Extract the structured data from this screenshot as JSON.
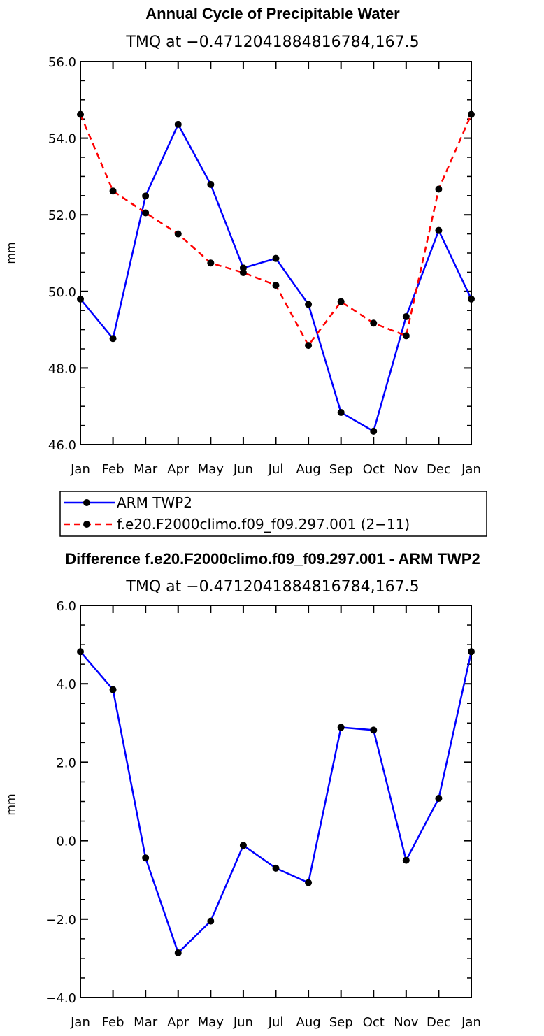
{
  "chart_data": [
    {
      "type": "line",
      "title": "Annual Cycle of Precipitable Water",
      "subtitle": "TMQ at −0.4712041884816784,167.5",
      "xlabel": "",
      "ylabel": "mm",
      "categories": [
        "Jan",
        "Feb",
        "Mar",
        "Apr",
        "May",
        "Jun",
        "Jul",
        "Aug",
        "Sep",
        "Oct",
        "Nov",
        "Dec",
        "Jan"
      ],
      "ylim": [
        46.0,
        56.0
      ],
      "yticks": [
        "46.0",
        "48.0",
        "50.0",
        "52.0",
        "54.0",
        "56.0"
      ],
      "grid": false,
      "series": [
        {
          "name": "ARM TWP2",
          "color": "#0000ff",
          "dash": "solid",
          "values": [
            49.8,
            48.77,
            52.49,
            54.36,
            52.79,
            50.61,
            50.86,
            49.66,
            46.84,
            46.35,
            49.34,
            51.59,
            49.8
          ]
        },
        {
          "name": "f.e20.F2000climo.f09_f09.297.001 (2−11)",
          "color": "#ff0000",
          "dash": "dashed",
          "values": [
            54.62,
            52.62,
            52.05,
            51.5,
            50.74,
            50.49,
            50.16,
            48.59,
            49.73,
            49.17,
            48.84,
            52.67,
            54.62
          ]
        }
      ],
      "legend": {
        "position": "below-left",
        "entries": [
          "ARM TWP2",
          "f.e20.F2000climo.f09_f09.297.001 (2−11)"
        ]
      }
    },
    {
      "type": "line",
      "title": "Difference f.e20.F2000climo.f09_f09.297.001 - ARM TWP2",
      "subtitle": "TMQ at −0.4712041884816784,167.5",
      "xlabel": "",
      "ylabel": "mm",
      "categories": [
        "Jan",
        "Feb",
        "Mar",
        "Apr",
        "May",
        "Jun",
        "Jul",
        "Aug",
        "Sep",
        "Oct",
        "Nov",
        "Dec",
        "Jan"
      ],
      "ylim": [
        -4.0,
        6.0
      ],
      "yticks": [
        "−4.0",
        "−2.0",
        "0.0",
        "2.0",
        "4.0",
        "6.0"
      ],
      "grid": false,
      "series": [
        {
          "name": "Difference",
          "color": "#0000ff",
          "dash": "solid",
          "values": [
            4.82,
            3.85,
            -0.44,
            -2.86,
            -2.05,
            -0.12,
            -0.7,
            -1.07,
            2.89,
            2.82,
            -0.5,
            1.08,
            4.82
          ]
        }
      ]
    }
  ]
}
